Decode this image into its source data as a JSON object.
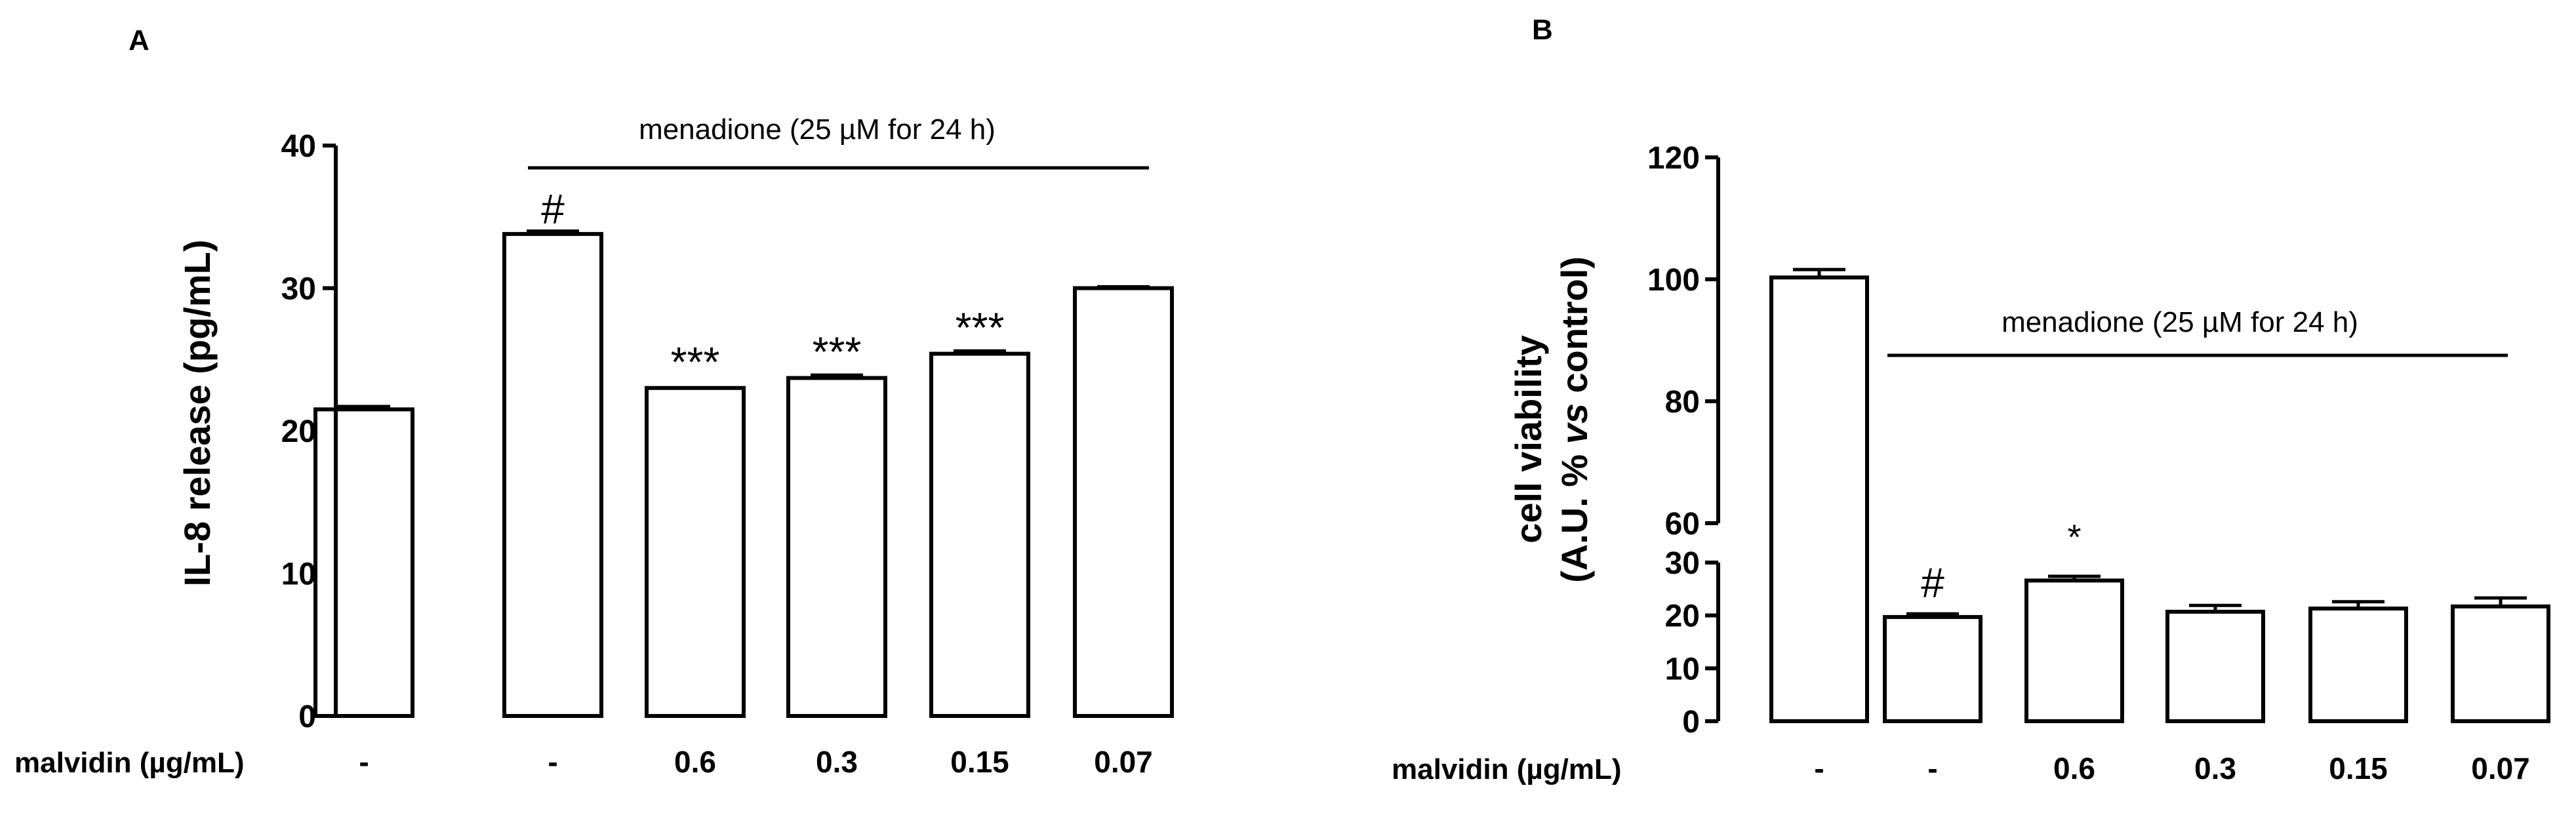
{
  "chart_data": [
    {
      "panel": "A",
      "type": "bar",
      "ylabel": "IL-8 release (pg/mL)",
      "ylim": [
        0,
        40
      ],
      "yticks": [
        0,
        10,
        20,
        30,
        40
      ],
      "xlabel": "malvidin (µg/mL)",
      "categories": [
        "-",
        "-",
        "0.6",
        "0.3",
        "0.15",
        "0.07"
      ],
      "values": [
        21.5,
        33.8,
        23.0,
        23.7,
        25.4,
        30.0
      ],
      "errors": [
        0.2,
        0.2,
        0.0,
        0.2,
        0.2,
        0.1
      ],
      "annotations": [
        "",
        "#",
        "***",
        "***",
        "***",
        ""
      ],
      "treatment": {
        "label": "menadione (25 µM for 24 h)",
        "from_index": 1,
        "to_index": 5
      }
    },
    {
      "panel": "B",
      "type": "bar",
      "ylabel_line1": "cell viability",
      "ylabel_line2_pre": "(A.U. % ",
      "ylabel_line2_italic": "vs",
      "ylabel_line2_post": " control)",
      "broken_axis": {
        "lower": {
          "ylim": [
            0,
            30
          ],
          "yticks": [
            0,
            10,
            20,
            30
          ]
        },
        "upper": {
          "ylim": [
            60,
            120
          ],
          "yticks": [
            60,
            80,
            100,
            120
          ]
        }
      },
      "xlabel": "malvidin (µg/mL)",
      "categories": [
        "-",
        "-",
        "0.6",
        "0.3",
        "0.15",
        "0.07"
      ],
      "values": [
        100.3,
        19.7,
        26.6,
        20.7,
        21.3,
        21.7
      ],
      "errors": [
        1.3,
        0.6,
        0.8,
        1.2,
        1.3,
        1.6
      ],
      "annotations": [
        "",
        "#",
        "*",
        "",
        "",
        ""
      ],
      "treatment": {
        "label": "menadione (25 µM for 24 h)",
        "from_index": 1,
        "to_index": 5
      }
    }
  ]
}
